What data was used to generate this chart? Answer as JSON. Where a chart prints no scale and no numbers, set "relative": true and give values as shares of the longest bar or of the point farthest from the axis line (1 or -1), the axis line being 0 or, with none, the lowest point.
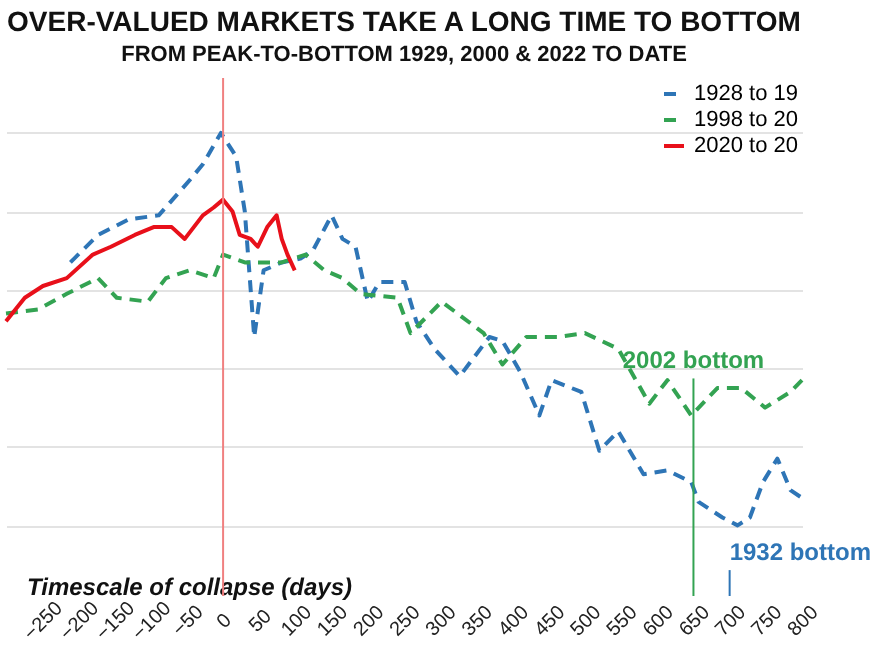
{
  "chart_data": {
    "type": "line",
    "title": "OVER-VALUED MARKETS TAKE A LONG TIME TO BOTTOM",
    "subtitle": "FROM PEAK-TO-BOTTOM 1929, 2000 & 2022 TO DATE",
    "xlabel": "Timescale of collapse (days)",
    "relative": true,
    "xlim": [
      -300,
      800
    ],
    "xticks": [
      -250,
      -200,
      -150,
      -100,
      -50,
      0,
      50,
      100,
      150,
      200,
      250,
      300,
      350,
      400,
      450,
      500,
      550,
      600,
      650,
      700,
      750,
      800
    ],
    "grid": "y",
    "legend": "top right",
    "marker": "none",
    "series": [
      {
        "name": "1928 to 19",
        "color": "#2e75b6",
        "line_style": "dashed",
        "x": [
          -211,
          -173,
          -130,
          -89,
          -46,
          -28,
          -3,
          18,
          30,
          43,
          56,
          81,
          107,
          124,
          150,
          165,
          183,
          200,
          216,
          251,
          267,
          292,
          327,
          368,
          386,
          411,
          437,
          454,
          495,
          520,
          546,
          581,
          614,
          647,
          657,
          690,
          711,
          728,
          746,
          766,
          784,
          800
        ],
        "values": [
          0.67,
          0.74,
          0.78,
          0.79,
          0.88,
          0.92,
          1.0,
          0.94,
          0.8,
          0.48,
          0.65,
          0.67,
          0.68,
          0.7,
          0.79,
          0.73,
          0.71,
          0.57,
          0.62,
          0.62,
          0.52,
          0.45,
          0.38,
          0.48,
          0.47,
          0.39,
          0.28,
          0.37,
          0.34,
          0.19,
          0.24,
          0.13,
          0.14,
          0.11,
          0.06,
          0.02,
          0.0,
          0.02,
          0.11,
          0.17,
          0.09,
          0.07
        ]
      },
      {
        "name": "1998 to 20",
        "color": "#33a352",
        "line_style": "dashed",
        "x": [
          -300,
          -256,
          -216,
          -173,
          -147,
          -104,
          -79,
          -46,
          -13,
          0,
          30,
          81,
          114,
          140,
          165,
          190,
          241,
          259,
          302,
          360,
          386,
          419,
          462,
          500,
          546,
          589,
          614,
          647,
          683,
          716,
          749,
          784,
          800
        ],
        "values": [
          0.54,
          0.55,
          0.59,
          0.63,
          0.58,
          0.57,
          0.63,
          0.65,
          0.63,
          0.69,
          0.67,
          0.67,
          0.69,
          0.65,
          0.63,
          0.59,
          0.58,
          0.49,
          0.57,
          0.49,
          0.41,
          0.48,
          0.48,
          0.49,
          0.45,
          0.31,
          0.37,
          0.28,
          0.35,
          0.35,
          0.3,
          0.34,
          0.37
        ]
      },
      {
        "name": "2020 to 20",
        "color": "#e8101a",
        "line_style": "solid",
        "x": [
          -300,
          -274,
          -249,
          -216,
          -180,
          -155,
          -122,
          -96,
          -71,
          -53,
          -28,
          -13,
          0,
          13,
          23,
          38,
          48,
          61,
          74,
          81,
          89,
          99
        ],
        "values": [
          0.52,
          0.58,
          0.61,
          0.63,
          0.69,
          0.71,
          0.74,
          0.76,
          0.76,
          0.73,
          0.79,
          0.81,
          0.83,
          0.8,
          0.74,
          0.73,
          0.71,
          0.76,
          0.79,
          0.73,
          0.69,
          0.65
        ]
      }
    ],
    "ref_lines": [
      {
        "axis": "x",
        "value": 0,
        "color": "#f08080"
      },
      {
        "axis": "x",
        "value": 650,
        "label": "2002 bottom",
        "color": "#33a352"
      },
      {
        "axis": "x",
        "value": 700,
        "label": "1932 bottom",
        "color": "#2e75b6"
      }
    ]
  }
}
